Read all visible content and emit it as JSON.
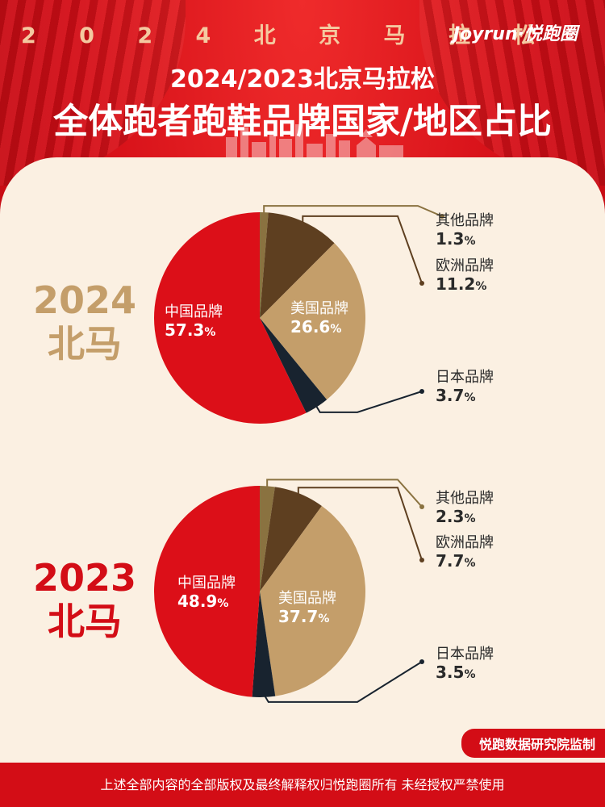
{
  "header": {
    "top_banner": "2 0 2 4 北 京 马 拉 松",
    "logo": "Joyrun·悦跑圈",
    "title_line1": "2024/2023北京马拉松",
    "title_line2": "全体跑者跑鞋品牌国家/地区占比"
  },
  "colors": {
    "china": "#dc0f18",
    "usa": "#c49e6a",
    "japan": "#18232f",
    "europe": "#5e3f20",
    "other": "#8a7240",
    "year_2024": "#c49e6a",
    "year_2023": "#d30d16"
  },
  "chart_data": [
    {
      "type": "pie",
      "title": "2024 北马",
      "year_label": "2024",
      "race_label": "北马",
      "slices": [
        {
          "key": "other",
          "name": "其他品牌",
          "value": 1.3
        },
        {
          "key": "europe",
          "name": "欧洲品牌",
          "value": 11.2
        },
        {
          "key": "usa",
          "name": "美国品牌",
          "value": 26.6
        },
        {
          "key": "japan",
          "name": "日本品牌",
          "value": 3.7
        },
        {
          "key": "china",
          "name": "中国品牌",
          "value": 57.3
        }
      ]
    },
    {
      "type": "pie",
      "title": "2023 北马",
      "year_label": "2023",
      "race_label": "北马",
      "slices": [
        {
          "key": "other",
          "name": "其他品牌",
          "value": 2.3
        },
        {
          "key": "europe",
          "name": "欧洲品牌",
          "value": 7.7
        },
        {
          "key": "usa",
          "name": "美国品牌",
          "value": 37.7
        },
        {
          "key": "japan",
          "name": "日本品牌",
          "value": 3.5
        },
        {
          "key": "china",
          "name": "中国品牌",
          "value": 48.9
        }
      ]
    }
  ],
  "footer": {
    "watermark": "悦跑数据研究院监制",
    "copyright": "上述全部内容的全部版权及最终解释权归悦跑圈所有 未经授权严禁使用"
  }
}
